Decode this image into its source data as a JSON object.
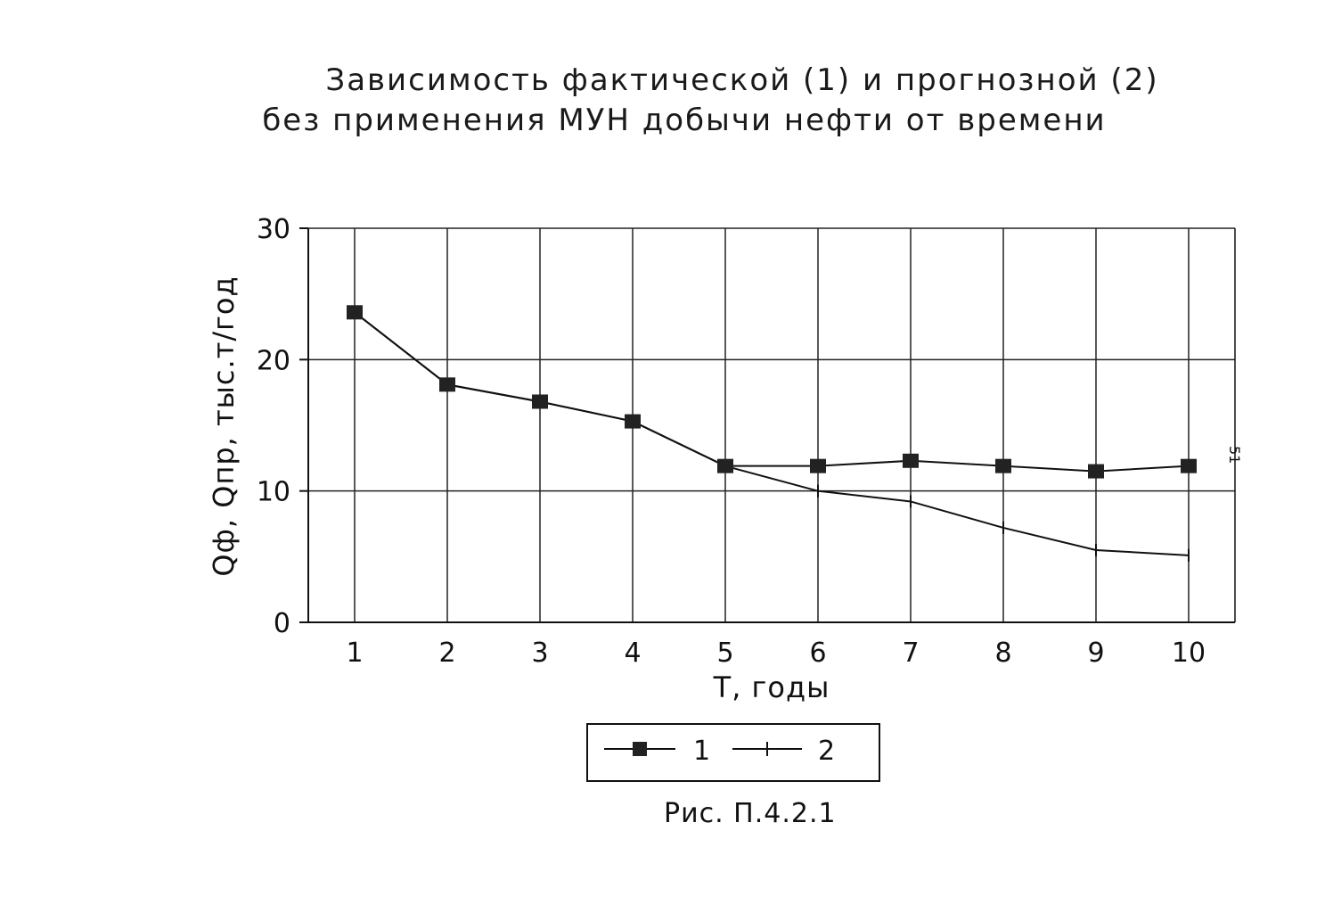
{
  "chart_data": {
    "type": "line",
    "title_line1": "Зависимость фактической (1) и прогнозной (2)",
    "title_line2": "без применения МУН добычи нефти от времени",
    "xlabel": "Т, годы",
    "ylabel": "Qф, Qпр, тыс.т/год",
    "x": [
      1,
      2,
      3,
      4,
      5,
      6,
      7,
      8,
      9,
      10
    ],
    "ylim": [
      0,
      30
    ],
    "yticks": [
      0,
      10,
      20,
      30
    ],
    "grid": true,
    "legend_position": "bottom",
    "series": [
      {
        "name": "1",
        "marker": "square",
        "values": [
          23.6,
          18.1,
          16.8,
          15.3,
          11.9,
          11.9,
          12.3,
          11.9,
          11.5,
          11.9
        ]
      },
      {
        "name": "2",
        "marker": "plus",
        "values": [
          23.6,
          18.1,
          16.8,
          15.3,
          11.9,
          10.0,
          9.2,
          7.2,
          5.5,
          5.1
        ]
      }
    ]
  },
  "caption": "Рис. П.4.2.1",
  "page_number": "51"
}
